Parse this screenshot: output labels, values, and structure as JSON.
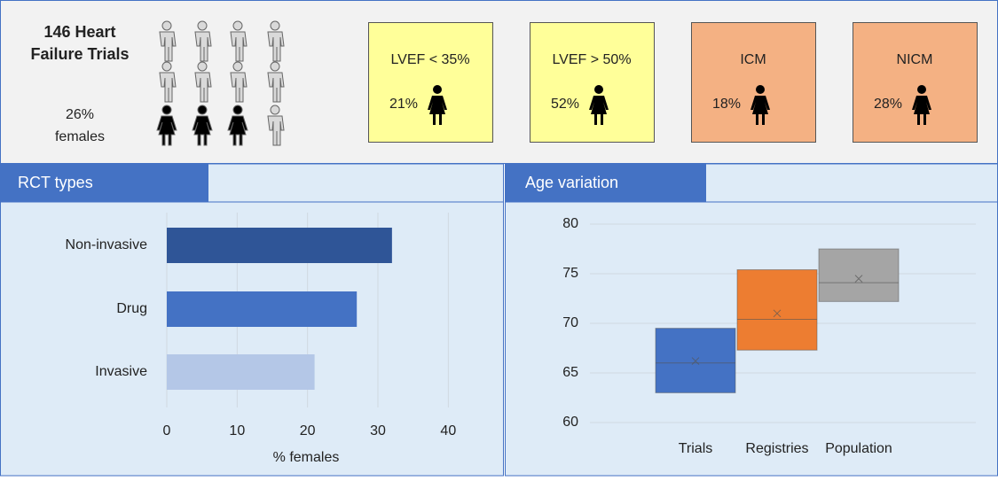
{
  "header": {
    "title_lines": [
      "146 Heart",
      "Failure Trials"
    ],
    "share": "26%",
    "share_label": "females",
    "cards": [
      {
        "label": "LVEF < 35%",
        "value": "21%",
        "color": "#ffff99"
      },
      {
        "label": "LVEF > 50%",
        "value": "52%",
        "color": "#ffff99"
      },
      {
        "label": "ICM",
        "value": "18%",
        "color": "#f4b183"
      },
      {
        "label": "NICM",
        "value": "28%",
        "color": "#f4b183"
      }
    ]
  },
  "chart_data": [
    {
      "type": "hbar",
      "title": "RCT types",
      "categories": [
        "Non-invasive",
        "Drug",
        "Invasive"
      ],
      "values": [
        32,
        27,
        21
      ],
      "colors": [
        "#2f5597",
        "#4472c4",
        "#b4c7e7"
      ],
      "xlim": [
        0,
        45
      ],
      "xticks": [
        0,
        10,
        20,
        30,
        40
      ],
      "xlabel": "% females",
      "grid": true
    },
    {
      "type": "box",
      "title": "Age variation",
      "categories": [
        "Trials",
        "Registries",
        "Population"
      ],
      "q1": [
        63.0,
        67.3,
        72.2
      ],
      "median": [
        66.0,
        70.4,
        74.1
      ],
      "q3": [
        69.5,
        75.4,
        77.5
      ],
      "mean": [
        66.2,
        71.0,
        74.5
      ],
      "colors": [
        "#4472c4",
        "#ed7d31",
        "#a5a5a5"
      ],
      "ylim": [
        60,
        80
      ],
      "yticks": [
        60,
        65,
        70,
        75,
        80
      ],
      "grid": true
    }
  ]
}
